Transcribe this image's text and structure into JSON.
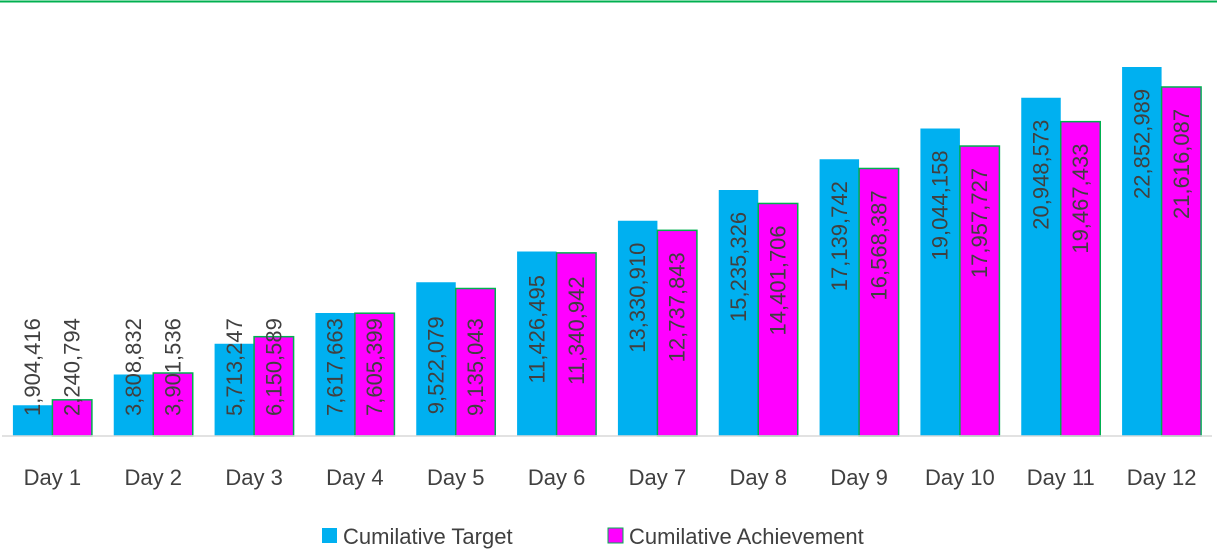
{
  "chart_data": {
    "type": "bar",
    "categories": [
      "Day 1",
      "Day 2",
      "Day 3",
      "Day 4",
      "Day 5",
      "Day 6",
      "Day 7",
      "Day 8",
      "Day 9",
      "Day 10",
      "Day 11",
      "Day 12"
    ],
    "series": [
      {
        "name": "Cumilative Target",
        "color": "#00b0f0",
        "values": [
          1904416,
          3808832,
          5713247,
          7617663,
          9522079,
          11426495,
          13330910,
          15235326,
          17139742,
          19044158,
          20948573,
          22852989
        ],
        "value_labels": [
          "1,904,416",
          "3,808,832",
          "5,713,247",
          "7,617,663",
          "9,522,079",
          "11,426,495",
          "13,330,910",
          "15,235,326",
          "17,139,742",
          "19,044,158",
          "20,948,573",
          "22,852,989"
        ]
      },
      {
        "name": "Cumilative Achievement",
        "color": "#ff00ff",
        "values": [
          2240794,
          3901536,
          6150589,
          7605399,
          9135043,
          11340942,
          12737843,
          14401706,
          16568387,
          17957727,
          19467433,
          21616087
        ],
        "value_labels": [
          "2,240,794",
          "3,901,536",
          "6,150,589",
          "7,605,399",
          "9,135,043",
          "11,340,942",
          "12,737,843",
          "14,401,706",
          "16,568,387",
          "17,957,727",
          "19,467,433",
          "21,616,087"
        ]
      }
    ],
    "legend": "bottom"
  }
}
